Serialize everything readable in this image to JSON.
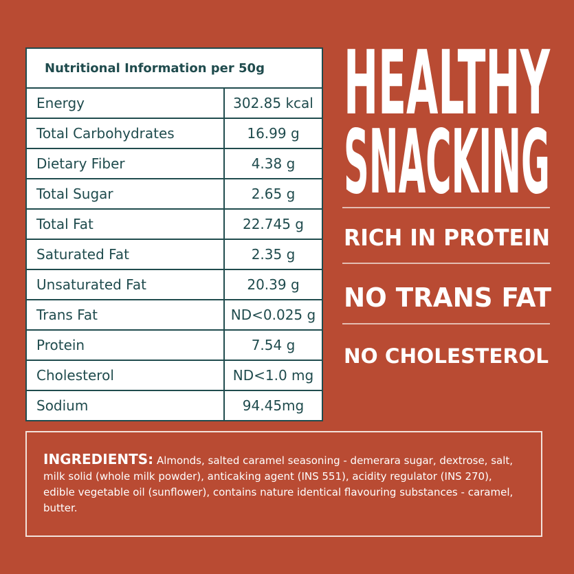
{
  "table": {
    "title": "Nutritional Information per 50g",
    "rows": [
      [
        "Energy",
        "302.85 kcal"
      ],
      [
        "Total Carbohydrates",
        "16.99 g"
      ],
      [
        "Dietary Fiber",
        "4.38 g"
      ],
      [
        "Total Sugar",
        "2.65 g"
      ],
      [
        "Total Fat",
        "22.745 g"
      ],
      [
        "Saturated Fat",
        "2.35 g"
      ],
      [
        "Unsaturated Fat",
        "20.39 g"
      ],
      [
        "Trans Fat",
        "ND<0.025 g"
      ],
      [
        "Protein",
        "7.54 g"
      ],
      [
        "Cholesterol",
        "ND<1.0 mg"
      ],
      [
        "Sodium",
        "94.45mg"
      ]
    ]
  },
  "claims": {
    "headline": [
      "HEALTHY",
      "SNACKING"
    ],
    "items": [
      "RICH IN PROTEIN",
      "NO TRANS FAT",
      "NO CHOLESTEROL"
    ]
  },
  "ingredients": {
    "label": "INGREDIENTS:",
    "text": "Almonds, salted caramel seasoning - demerara sugar, dextrose, salt, milk solid (whole milk powder), anticaking agent (INS 551), acidity regulator (INS 270), edible vegetable oil (sunflower), contains nature identical flavouring substances - caramel, butter."
  }
}
